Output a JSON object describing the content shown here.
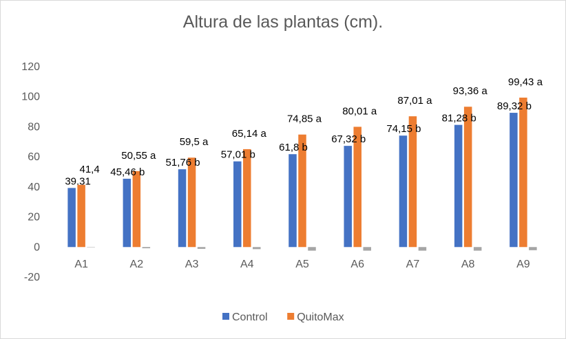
{
  "chart_data": {
    "type": "bar",
    "title": "Altura de las plantas (cm).",
    "xlabel": "",
    "ylabel": "",
    "ylim": [
      -20,
      120
    ],
    "yticks": [
      "-20",
      "0",
      "20",
      "40",
      "60",
      "80",
      "100",
      "120"
    ],
    "grid": false,
    "legend_position": "bottom",
    "categories": [
      "A1",
      "A2",
      "A3",
      "A4",
      "A5",
      "A6",
      "A7",
      "A8",
      "A9"
    ],
    "series": [
      {
        "name": "Control",
        "color": "#4472c4",
        "values": [
          39.31,
          45.46,
          51.76,
          57.01,
          61.8,
          67.32,
          74.15,
          81.28,
          89.32
        ],
        "labels": [
          "39.31",
          "45,46 b",
          "51,76 b",
          "57,01 b",
          "61,8 b",
          "67,32 b",
          "74,15 b",
          "81,28 b",
          "89,32 b"
        ]
      },
      {
        "name": "QuitoMax",
        "color": "#ed7d31",
        "values": [
          41.4,
          50.55,
          59.5,
          65.14,
          74.85,
          80.01,
          87.01,
          93.36,
          99.43
        ],
        "labels": [
          "41,4",
          "50,55 a",
          "59,5 a",
          "65,14 a",
          "74,85 a",
          "80,01 a",
          "87,01 a",
          "93,36 a",
          "99,43 a"
        ]
      },
      {
        "color": "#a5a5a5",
        "values": [
          0,
          -0.8,
          -1.2,
          -1.4,
          -2.4,
          -2.4,
          -2.4,
          -2.4,
          -2.1
        ],
        "labels": []
      }
    ]
  }
}
